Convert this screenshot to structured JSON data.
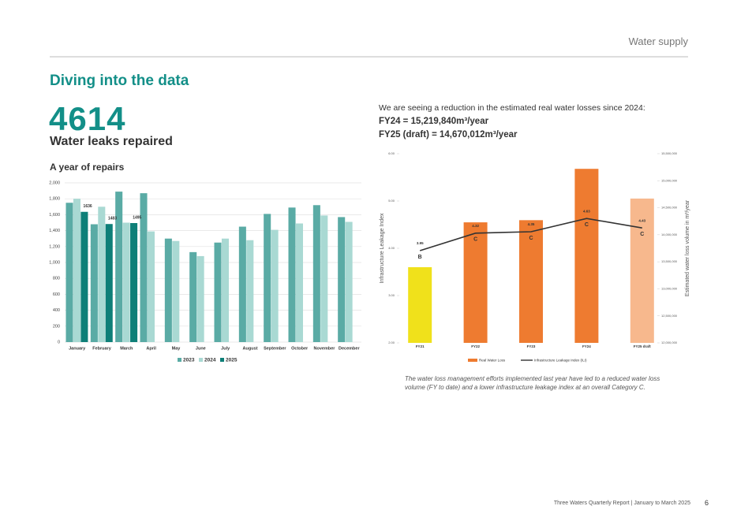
{
  "header": {
    "section": "Water supply",
    "title": "Diving into the data",
    "stat": "4614",
    "stat_label": "Water leaks repaired",
    "subtitle": "A year of repairs"
  },
  "intro": {
    "text": "We are seeing a reduction in the estimated real water losses since 2024:",
    "fy24": "FY24 = 15,219,840m³/year",
    "fy25": "FY25 (draft) = 14,670,012m³/year"
  },
  "caption": "The water loss management efforts implemented last year have led to a reduced water loss volume (FY to date) and a lower infrastructure leakage index at an overall Category C.",
  "footer": {
    "report": "Three Waters Quarterly Report | January to March 2025",
    "page": "6"
  },
  "chart_data": [
    {
      "type": "bar",
      "categories": [
        "January",
        "February",
        "March",
        "April",
        "May",
        "June",
        "July",
        "August",
        "September",
        "October",
        "November",
        "December"
      ],
      "series": [
        {
          "name": "2023",
          "color": "#5aaba5",
          "values": [
            1750,
            1480,
            1890,
            1870,
            1300,
            1130,
            1250,
            1450,
            1610,
            1690,
            1720,
            1570
          ]
        },
        {
          "name": "2024",
          "color": "#a9d9d3",
          "values": [
            1800,
            1700,
            1500,
            1390,
            1270,
            1080,
            1300,
            1280,
            1410,
            1490,
            1590,
            1510
          ]
        },
        {
          "name": "2025",
          "color": "#0e7f78",
          "values": [
            1636,
            1483,
            1495,
            null,
            null,
            null,
            null,
            null,
            null,
            null,
            null,
            null
          ],
          "data_labels": true
        }
      ],
      "ylim": [
        0,
        2000
      ],
      "yticks": [
        0,
        200,
        400,
        600,
        800,
        {
          "value": 1000,
          "label": "1,000"
        },
        {
          "value": 1200,
          "label": "1,200"
        },
        {
          "value": 1400,
          "label": "1,400"
        },
        {
          "value": 1600,
          "label": "1,600"
        },
        {
          "value": 1800,
          "label": "1,800"
        },
        {
          "value": 2000,
          "label": "2,000"
        }
      ],
      "grid": true,
      "legend": "bottom"
    },
    {
      "type": "combo",
      "categories": [
        "FY21",
        "FY22",
        "FY23",
        "FY24",
        "FY25 draft"
      ],
      "ylabel": "Infrastructure Leakage Index",
      "y2label": "Estimated water loss volume in m³/year",
      "series": [
        {
          "name": "Real Water Loss",
          "type": "bar",
          "axis": "y2",
          "colors": [
            "#f0e11b",
            "#ee7b30",
            "#ee7b30",
            "#ee7b30",
            "#f7b88d"
          ],
          "values": [
            13400000,
            14230000,
            14270000,
            15219840,
            14670012
          ]
        },
        {
          "name": "Infrastructure Leakage Index (ILI)",
          "type": "line",
          "color": "#333333",
          "values": [
            3.95,
            4.32,
            4.35,
            4.63,
            4.43
          ],
          "data_labels": true
        }
      ],
      "grades": [
        "B",
        "C",
        "C",
        "C",
        "C"
      ],
      "ylim": [
        2,
        6
      ],
      "yticks": [
        {
          "value": 2,
          "label": "2.00"
        },
        {
          "value": 3,
          "label": "3.00"
        },
        {
          "value": 4,
          "label": "4.00"
        },
        {
          "value": 5,
          "label": "5.00"
        },
        {
          "value": 6,
          "label": "6.00"
        }
      ],
      "y2lim": [
        12000000,
        15500000
      ],
      "y2ticks": [
        {
          "value": 12000000,
          "label": "12,000,000"
        },
        {
          "value": 12500000,
          "label": "12,500,000"
        },
        {
          "value": 13000000,
          "label": "13,000,000"
        },
        {
          "value": 13500000,
          "label": "13,500,000"
        },
        {
          "value": 14000000,
          "label": "14,000,000"
        },
        {
          "value": 14500000,
          "label": "14,500,000"
        },
        {
          "value": 15000000,
          "label": "15,000,000"
        },
        {
          "value": 15500000,
          "label": "15,500,000"
        }
      ],
      "legend": "bottom"
    }
  ]
}
